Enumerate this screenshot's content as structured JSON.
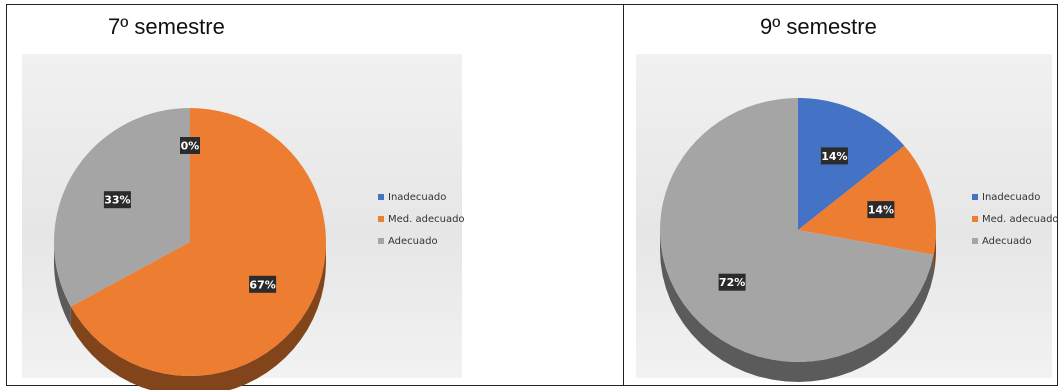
{
  "chart_data": [
    {
      "type": "pie",
      "title": "7º semestre",
      "categories": [
        "Inadecuado",
        "Med. adecuado",
        "Adecuado"
      ],
      "values": [
        0,
        67,
        33
      ],
      "data_labels": [
        "0%",
        "67%",
        "33%"
      ],
      "colors": [
        "#4472c4",
        "#ed7d31",
        "#a5a5a5"
      ],
      "legend_position": "right",
      "style": "3d-pie"
    },
    {
      "type": "pie",
      "title": "9º semestre",
      "categories": [
        "Inadecuado",
        "Med. adecuado",
        "Adecuado"
      ],
      "values": [
        14,
        14,
        72
      ],
      "data_labels": [
        "14%",
        "14%",
        "72%"
      ],
      "colors": [
        "#4472c4",
        "#ed7d31",
        "#a5a5a5"
      ],
      "legend_position": "right",
      "style": "3d-pie"
    }
  ]
}
